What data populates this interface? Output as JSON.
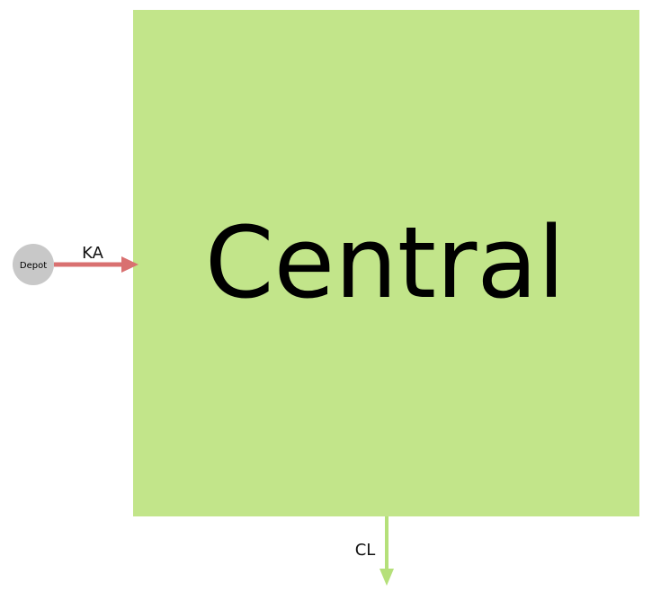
{
  "nodes": {
    "central": {
      "label": "Central",
      "color": "#c2e58a"
    },
    "depot": {
      "label": "Depot",
      "color": "#c8c8c8"
    }
  },
  "edges": {
    "ka": {
      "label": "KA",
      "color": "#d97070"
    },
    "cl": {
      "label": "CL",
      "color": "#b5e07a"
    }
  }
}
